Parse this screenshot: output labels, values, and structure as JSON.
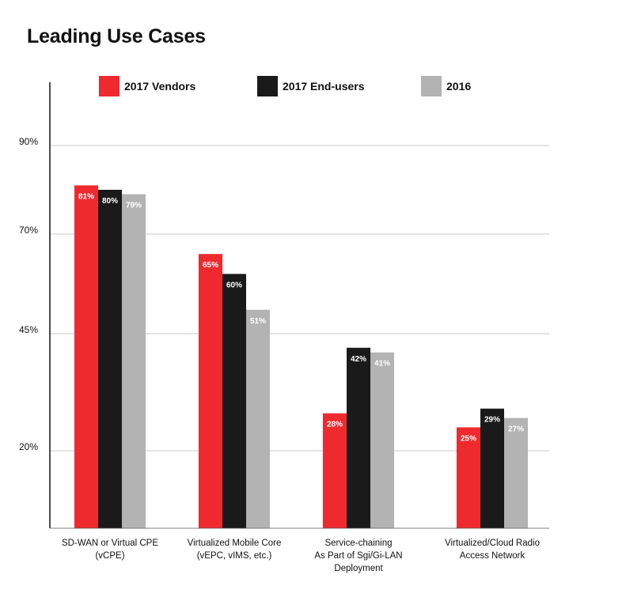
{
  "chart_data": {
    "type": "bar",
    "title": "Leading Use Cases",
    "xlabel": "",
    "ylabel": "",
    "categories": [
      [
        "SD-WAN or Virtual CPE",
        "(vCPE)"
      ],
      [
        "Virtualized Mobile Core",
        "(vEPC, vIMS, etc.)"
      ],
      [
        "Service-chaining",
        "As Part of Sgi/Gi-LAN",
        "Deployment"
      ],
      [
        "Virtualized/Cloud Radio",
        "Access Network"
      ]
    ],
    "series": [
      {
        "name": "2017 Vendors",
        "color": "#ee2a2f",
        "label_color": "#ffffff",
        "values": [
          81,
          65,
          28,
          25
        ]
      },
      {
        "name": "2017 End-users",
        "color": "#1a1a1a",
        "label_color": "#ffffff",
        "values": [
          80,
          60,
          42,
          29
        ]
      },
      {
        "name": "2016",
        "color": "#b3b3b3",
        "label_color": "#ffffff",
        "values": [
          79,
          51,
          41,
          27
        ]
      }
    ],
    "yticks": [
      {
        "label": "90%",
        "value": 90
      },
      {
        "label": "70%",
        "value": 70
      },
      {
        "label": "45%",
        "value": 45
      },
      {
        "label": "20%",
        "value": 20
      }
    ],
    "legend_position": "top",
    "grid": true
  }
}
